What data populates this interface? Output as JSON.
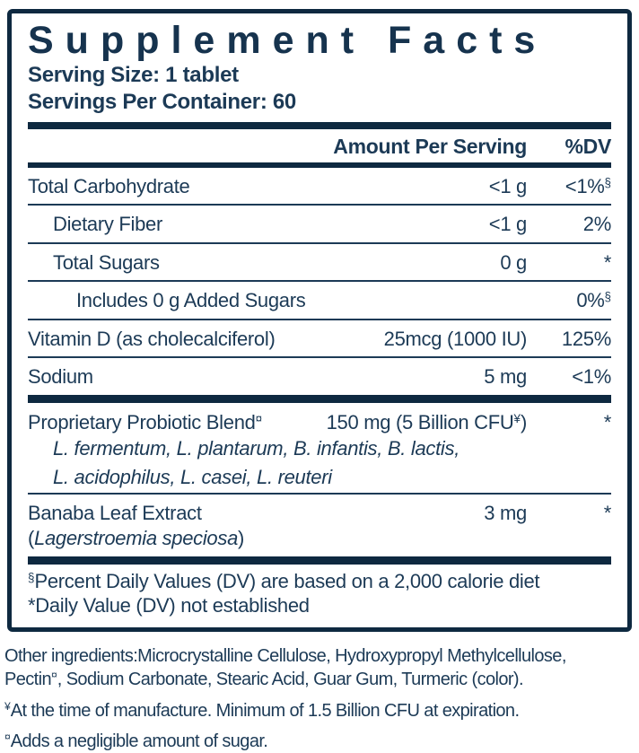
{
  "title": "Supplement Facts",
  "serving": {
    "size": "Serving Size: 1 tablet",
    "per_container": "Servings Per Container: 60"
  },
  "table": {
    "header": {
      "amount": "Amount Per Serving",
      "dv": "%DV"
    },
    "rows": [
      {
        "name": "Total Carbohydrate",
        "amount": "<1 g",
        "dv": "<1%",
        "dv_sup": "§"
      },
      {
        "name": "Dietary Fiber",
        "amount": "<1 g",
        "dv": "2%"
      },
      {
        "name": "Total Sugars",
        "amount": "0 g",
        "dv": "*"
      },
      {
        "name": "Includes 0 g Added Sugars",
        "amount": "",
        "dv": "0%",
        "dv_sup": "§"
      },
      {
        "name": "Vitamin D (as cholecalciferol)",
        "amount": "25mcg (1000 IU)",
        "dv": "125%"
      },
      {
        "name": "Sodium",
        "amount": "5 mg",
        "dv": "<1%"
      }
    ],
    "blend": {
      "name": "Proprietary Probiotic Blend",
      "name_sup": "¤",
      "amount_main": "150 mg (5 Billion CFU",
      "amount_sup": "¥",
      "amount_close": ")",
      "dv": "*",
      "species_line1": "L. fermentum, L. plantarum, B. infantis, B. lactis,",
      "species_line2": "L. acidophilus, L. casei, L. reuteri"
    },
    "banaba": {
      "name_pre": "Banaba Leaf Extract (",
      "name_italic": "Lagerstroemia speciosa",
      "name_post": ")",
      "amount": "3 mg",
      "dv": "*"
    }
  },
  "footnotes": {
    "dv_sup": "§",
    "dv_text": "Percent Daily Values (DV) are based on a 2,000 calorie diet",
    "nd_text": "*Daily Value (DV) not established"
  },
  "bottom": {
    "other_line1": "Other ingredients:Microcrystalline Cellulose, Hydroxypropyl Methylcellulose,",
    "other_line2_pre": "Pectin",
    "other_line2_sup": "¤",
    "other_line2_post": ", Sodium Carbonate, Stearic Acid, Guar Gum, Turmeric (color).",
    "cfu_sup": "¥",
    "cfu_text": "At the time of manufacture. Minimum of 1.5 Billion CFU at expiration.",
    "sugar_sup": "¤",
    "sugar_text": "Adds a negligible amount of sugar."
  },
  "colors": {
    "navy_text": "#1c3a56",
    "navy_dark": "#0e2940"
  }
}
